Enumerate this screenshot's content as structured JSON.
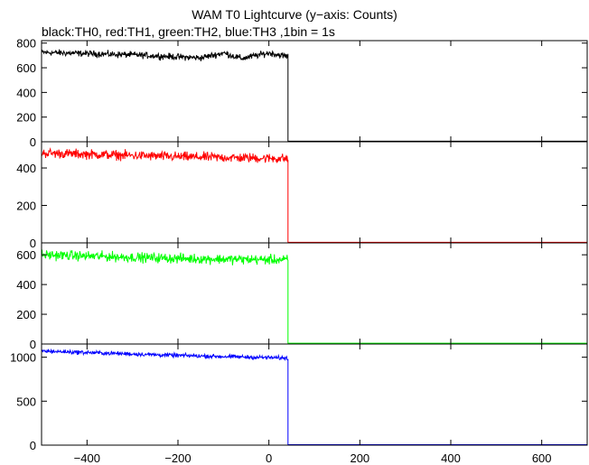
{
  "title": "WAM T0 Lightcurve (y−axis: Counts)",
  "subtitle": "black:TH0, red:TH1, green:TH2, blue:TH3 ,1bin = 1s",
  "chart_data": {
    "type": "line",
    "x_range": [
      -500,
      700
    ],
    "x_ticks": [
      -400,
      -200,
      0,
      200,
      400,
      600
    ],
    "x_tick_labels": [
      "−400",
      "−200",
      "0",
      "200",
      "400",
      "600"
    ],
    "step_time": 42,
    "panels": [
      {
        "name": "TH0",
        "color": "#000000",
        "ylim": [
          0,
          820
        ],
        "yticks": [
          0,
          200,
          400,
          600,
          800
        ],
        "ytick_labels": [
          "0",
          "200",
          "400",
          "600",
          "800"
        ],
        "level": [
          [
            -500,
            725
          ],
          [
            -300,
            705
          ],
          [
            -150,
            680
          ],
          [
            -100,
            720
          ],
          [
            -60,
            675
          ],
          [
            0,
            720
          ],
          [
            42,
            690
          ]
        ],
        "noise": 22,
        "after": 5
      },
      {
        "name": "TH1",
        "color": "#ff0000",
        "ylim": [
          0,
          540
        ],
        "yticks": [
          0,
          200,
          400
        ],
        "ytick_labels": [
          "0",
          "200",
          "400"
        ],
        "level": [
          [
            -500,
            480
          ],
          [
            -200,
            460
          ],
          [
            42,
            450
          ]
        ],
        "noise": 22,
        "after": 3
      },
      {
        "name": "TH2",
        "color": "#00ff00",
        "ylim": [
          0,
          680
        ],
        "yticks": [
          0,
          200,
          400,
          600
        ],
        "ytick_labels": [
          "0",
          "200",
          "400",
          "600"
        ],
        "level": [
          [
            -500,
            600
          ],
          [
            -200,
            575
          ],
          [
            42,
            565
          ]
        ],
        "noise": 28,
        "after": 5
      },
      {
        "name": "TH3",
        "color": "#0000ff",
        "ylim": [
          0,
          1150
        ],
        "yticks": [
          0,
          500,
          1000
        ],
        "ytick_labels": [
          "0",
          "500",
          "1000"
        ],
        "level": [
          [
            -500,
            1070
          ],
          [
            -200,
            1020
          ],
          [
            42,
            990
          ]
        ],
        "noise": 20,
        "after": 5
      }
    ]
  }
}
